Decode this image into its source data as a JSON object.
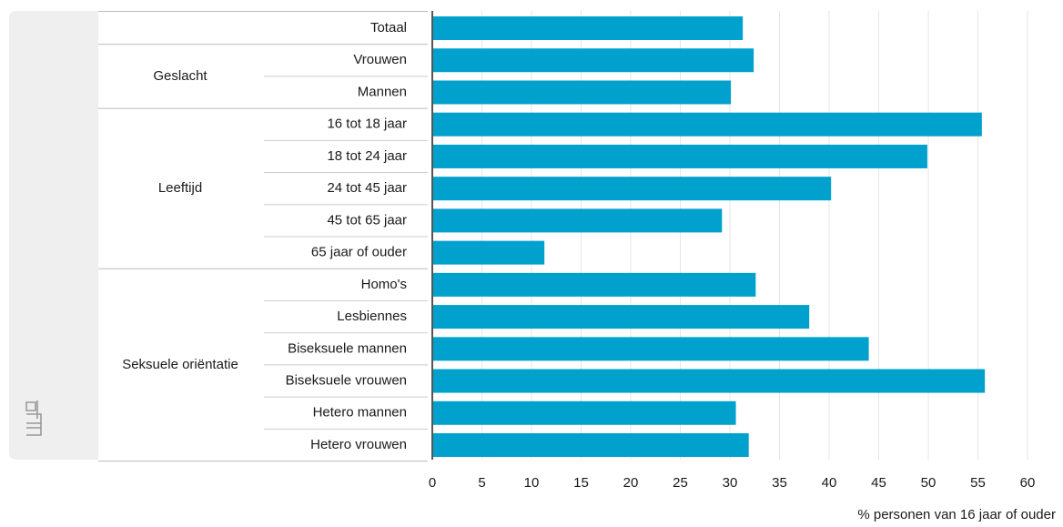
{
  "chart_data": {
    "type": "bar",
    "orientation": "horizontal",
    "categories": [
      "Totaal",
      "Vrouwen",
      "Mannen",
      "16 tot 18 jaar",
      "18 tot 24 jaar",
      "24 tot 45 jaar",
      "45 tot 65 jaar",
      "65 jaar of ouder",
      "Homo's",
      "Lesbiennes",
      "Biseksuele mannen",
      "Biseksuele vrouwen",
      "Hetero mannen",
      "Hetero vrouwen"
    ],
    "groups": [
      null,
      "Geslacht",
      "Geslacht",
      "Leeftijd",
      "Leeftijd",
      "Leeftijd",
      "Leeftijd",
      "Leeftijd",
      "Seksuele oriëntatie",
      "Seksuele oriëntatie",
      "Seksuele oriëntatie",
      "Seksuele oriëntatie",
      "Seksuele oriëntatie",
      "Seksuele oriëntatie"
    ],
    "values": [
      31.3,
      32.4,
      30.1,
      55.4,
      49.9,
      40.2,
      29.2,
      11.3,
      32.6,
      38.0,
      44.0,
      55.7,
      30.6,
      31.9
    ],
    "color": "#00a1cd",
    "xlim": [
      0,
      60
    ],
    "xticks": [
      0,
      5,
      10,
      15,
      20,
      25,
      30,
      35,
      40,
      45,
      50,
      55,
      60
    ],
    "x_label": "% personen van 16 jaar of ouder",
    "grid": true
  }
}
